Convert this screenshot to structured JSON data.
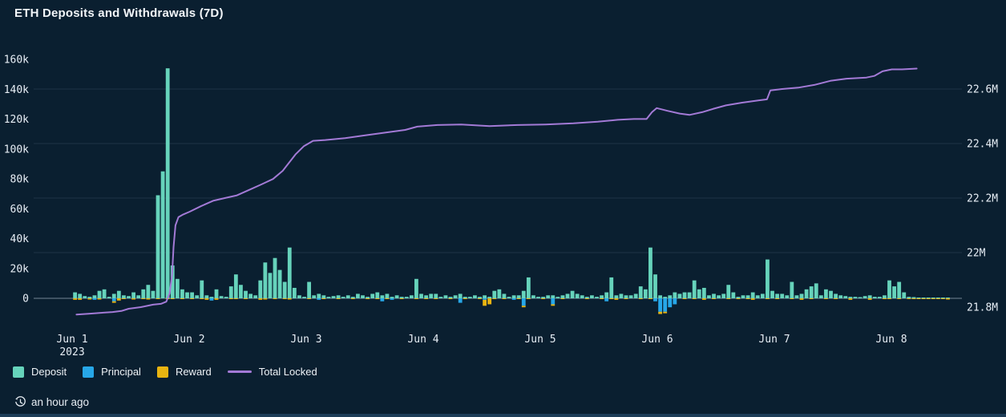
{
  "panel": {
    "title": "ETH Deposits and Withdrawals (7D)",
    "updated": "an hour ago"
  },
  "colors": {
    "background": "#0a1f30",
    "deposit": "#66d3bb",
    "principal": "#27a7e8",
    "reward": "#e9b411",
    "total_locked": "#a37ad6",
    "axis_text": "#e7eef5",
    "zero_line": "#aebcc9",
    "grid_line": "rgba(170,200,230,0.12)",
    "bottom_edge": "#1d3d58"
  },
  "legend": [
    {
      "id": "deposit",
      "label": "Deposit",
      "color": "#66d3bb",
      "swatch": "square"
    },
    {
      "id": "principal",
      "label": "Principal",
      "color": "#27a7e8",
      "swatch": "square"
    },
    {
      "id": "reward",
      "label": "Reward",
      "color": "#e9b411",
      "swatch": "square"
    },
    {
      "id": "total-locked",
      "label": "Total Locked",
      "color": "#a37ad6",
      "swatch": "line"
    }
  ],
  "chart_data": {
    "type": "bar+line",
    "title": "ETH Deposits and Withdrawals (7D)",
    "x_unit": "hours since Jun 1 2023 00:00, one bar per hour",
    "x_ticks": [
      {
        "label": "Jun 1",
        "sub": "2023"
      },
      {
        "label": "Jun 2"
      },
      {
        "label": "Jun 3"
      },
      {
        "label": "Jun 4"
      },
      {
        "label": "Jun 5"
      },
      {
        "label": "Jun 6"
      },
      {
        "label": "Jun 7"
      },
      {
        "label": "Jun 8"
      }
    ],
    "left_axis": {
      "unit": "ETH (thousands)",
      "tick_labels": [
        "160k",
        "140k",
        "120k",
        "100k",
        "80k",
        "60k",
        "40k",
        "20k",
        "0"
      ],
      "tick_values_k": [
        160,
        140,
        120,
        100,
        80,
        60,
        40,
        20,
        0
      ],
      "lim_k": [
        0,
        165
      ]
    },
    "right_axis": {
      "unit": "ETH total locked (millions)",
      "tick_labels": [
        "21.8M",
        "22M",
        "22.2M",
        "22.4M",
        "22.6M"
      ],
      "tick_values_M": [
        21.8,
        22.0,
        22.2,
        22.4,
        22.6
      ],
      "lim_M": [
        21.74,
        22.72
      ]
    },
    "grid": "faint horizontal lines at right-axis ticks, solid light zero line",
    "legend_position": "bottom-left",
    "series": [
      {
        "name": "Deposit",
        "type": "bar",
        "direction": "up",
        "color": "#66d3bb",
        "values_k": [
          4,
          3,
          1.5,
          1,
          2,
          5,
          6,
          1,
          3,
          5,
          2,
          1.5,
          4,
          2,
          6,
          9,
          5,
          69,
          85,
          154,
          22,
          13,
          6,
          4,
          4,
          2,
          12,
          2,
          1,
          6,
          1.5,
          1,
          8,
          16,
          9,
          5,
          3,
          2,
          12,
          24,
          17,
          27,
          19,
          11,
          34,
          7,
          2,
          1,
          11,
          2,
          3,
          2,
          1,
          1.5,
          2,
          1,
          2,
          1,
          3,
          2,
          1,
          3,
          4,
          2,
          3,
          1,
          2,
          1,
          1,
          2,
          13,
          3,
          2,
          3,
          3,
          1,
          2,
          1,
          2,
          3,
          1,
          1,
          2,
          1,
          2,
          1,
          5,
          6,
          3,
          1,
          2,
          2,
          5,
          14,
          2,
          1,
          1,
          2,
          2,
          1,
          2,
          3,
          5,
          3,
          2,
          1,
          2,
          1,
          2,
          4,
          14,
          2,
          3,
          2,
          2,
          3,
          8,
          6,
          34,
          16,
          2,
          1,
          2,
          4,
          3,
          4,
          4,
          12,
          6,
          7,
          2,
          3,
          2,
          3,
          9,
          4,
          1,
          2,
          2,
          4,
          2,
          3,
          26,
          5,
          3,
          3,
          2,
          11,
          2,
          3,
          6,
          8,
          10,
          2,
          6,
          5,
          3,
          2,
          1.5,
          1,
          1,
          0.8,
          1.5,
          2,
          1,
          1,
          2,
          12,
          8,
          11,
          4,
          1,
          0.8,
          0.5,
          0.5,
          0.3,
          0.5,
          0.3,
          0.5,
          0.3
        ]
      },
      {
        "name": "Principal",
        "type": "bar",
        "direction": "down",
        "color": "#27a7e8",
        "values_k": [
          0,
          0,
          0,
          0,
          -1,
          0,
          0,
          0,
          -2,
          0,
          0,
          0,
          0,
          0,
          0,
          0,
          0,
          0,
          0,
          0,
          0,
          0,
          0,
          0,
          0,
          0,
          0,
          0,
          -1.5,
          0,
          0,
          0,
          0,
          0,
          0,
          0,
          0,
          0,
          0,
          0,
          0,
          0,
          0,
          0,
          0,
          0,
          0,
          0,
          0,
          0,
          -1,
          0,
          0,
          0,
          0,
          0,
          0,
          0,
          0,
          0,
          0,
          0,
          0,
          -2,
          0,
          -1,
          0,
          0,
          0,
          0,
          0,
          0,
          0,
          0,
          0,
          0,
          0,
          0,
          0,
          -3,
          0,
          0,
          0,
          0,
          -1,
          0,
          0,
          0,
          0,
          0,
          -1,
          0,
          -5,
          0,
          0,
          0,
          0,
          0,
          -4,
          0,
          0,
          0,
          0,
          0,
          0,
          0,
          0,
          0,
          0,
          -2,
          0,
          0,
          0,
          0,
          0,
          0,
          0,
          0,
          0,
          -2,
          -9,
          -9,
          -6,
          -4,
          0,
          0,
          0,
          0,
          0,
          0,
          0,
          0,
          0,
          0,
          0,
          0,
          0,
          0,
          0,
          0,
          0,
          0,
          0,
          0,
          0,
          0,
          0,
          0,
          0,
          0,
          0,
          0,
          0,
          0,
          0,
          0,
          0,
          0,
          0,
          0,
          0,
          0,
          0,
          0,
          0,
          0,
          0,
          0,
          0,
          0,
          0,
          0,
          0,
          0,
          0,
          0,
          0,
          0,
          0,
          0
        ]
      },
      {
        "name": "Reward",
        "type": "bar",
        "direction": "down",
        "color": "#e9b411",
        "values_k": [
          -1,
          -1,
          0,
          -0.8,
          0,
          -0.8,
          0,
          0,
          -1,
          -1.5,
          -0.5,
          0,
          -0.8,
          0,
          -0.5,
          -0.8,
          0,
          -0.5,
          0,
          -0.5,
          -0.5,
          0,
          -0.5,
          0,
          -0.5,
          0,
          -0.5,
          -1,
          0,
          -1,
          0,
          0,
          -0.5,
          -0.5,
          0,
          -0.5,
          0,
          0,
          -1,
          -0.8,
          0,
          -0.5,
          0,
          -0.5,
          -0.8,
          0,
          0,
          0,
          -0.5,
          0,
          0,
          -0.5,
          0,
          0,
          -0.5,
          0,
          0,
          -0.5,
          0,
          0,
          -0.5,
          0,
          -0.5,
          0,
          -0.5,
          0,
          0,
          -0.5,
          0,
          0,
          -0.5,
          0,
          -0.5,
          0,
          -0.5,
          0,
          0,
          -0.5,
          0,
          0,
          -0.5,
          0,
          0,
          -0.5,
          -4,
          -4,
          -0.5,
          0,
          -0.5,
          0,
          0,
          -0.5,
          -1,
          -0.5,
          0,
          0,
          -0.5,
          0,
          -1,
          0,
          -0.5,
          0,
          0,
          0,
          0,
          -0.5,
          0,
          0,
          -0.5,
          0,
          -0.5,
          -1,
          0,
          -0.5,
          0,
          0,
          -0.5,
          0,
          -0.5,
          0,
          -1.5,
          -1,
          0,
          0,
          0,
          -0.5,
          0,
          -0.5,
          0,
          -1,
          0,
          -0.5,
          0,
          0,
          -0.5,
          0,
          -0.5,
          0,
          -0.5,
          -1,
          0,
          0,
          -0.5,
          0,
          -0.5,
          0,
          0,
          -0.5,
          0,
          -1,
          0,
          -0.5,
          0,
          0,
          -0.5,
          0,
          -0.5,
          0,
          0,
          -1,
          0,
          0,
          0,
          -1,
          0,
          0,
          -0.5,
          -0.5,
          0,
          -0.5,
          0,
          -0.5,
          -0.3,
          -0.3,
          -0.5,
          -0.3,
          -0.3,
          -0.5,
          -0.3,
          -0.8
        ]
      },
      {
        "name": "Total Locked",
        "type": "line",
        "axis": "right",
        "color": "#a37ad6",
        "points_hour_valueM": [
          [
            0.3,
            21.773
          ],
          [
            2.8,
            21.776
          ],
          [
            5.3,
            21.779
          ],
          [
            7.7,
            21.782
          ],
          [
            9.5,
            21.786
          ],
          [
            11,
            21.794
          ],
          [
            13.5,
            21.8
          ],
          [
            16,
            21.809
          ],
          [
            17.6,
            21.812
          ],
          [
            18.7,
            21.82
          ],
          [
            19.4,
            21.85
          ],
          [
            19.9,
            21.92
          ],
          [
            20.2,
            22.02
          ],
          [
            20.6,
            22.1
          ],
          [
            21.2,
            22.13
          ],
          [
            22.2,
            22.14
          ],
          [
            23.5,
            22.15
          ],
          [
            25.8,
            22.17
          ],
          [
            28.3,
            22.19
          ],
          [
            30.7,
            22.2
          ],
          [
            33.2,
            22.21
          ],
          [
            35.7,
            22.23
          ],
          [
            38.2,
            22.25
          ],
          [
            40.6,
            22.27
          ],
          [
            42.6,
            22.3
          ],
          [
            43.9,
            22.33
          ],
          [
            45.2,
            22.36
          ],
          [
            46.9,
            22.39
          ],
          [
            48.8,
            22.41
          ],
          [
            51.3,
            22.413
          ],
          [
            55.4,
            22.42
          ],
          [
            59.5,
            22.43
          ],
          [
            63.6,
            22.44
          ],
          [
            67.7,
            22.45
          ],
          [
            70.2,
            22.462
          ],
          [
            74.3,
            22.468
          ],
          [
            79.2,
            22.47
          ],
          [
            85,
            22.464
          ],
          [
            90.7,
            22.468
          ],
          [
            96.5,
            22.47
          ],
          [
            102.2,
            22.474
          ],
          [
            107.2,
            22.48
          ],
          [
            111.3,
            22.487
          ],
          [
            114.6,
            22.49
          ],
          [
            117.2,
            22.49
          ],
          [
            118.3,
            22.515
          ],
          [
            119.3,
            22.53
          ],
          [
            121.5,
            22.52
          ],
          [
            124,
            22.51
          ],
          [
            126,
            22.505
          ],
          [
            128.6,
            22.515
          ],
          [
            131,
            22.528
          ],
          [
            133.5,
            22.54
          ],
          [
            136.8,
            22.55
          ],
          [
            140.1,
            22.558
          ],
          [
            141.9,
            22.562
          ],
          [
            142.6,
            22.595
          ],
          [
            145,
            22.6
          ],
          [
            148.3,
            22.605
          ],
          [
            151.6,
            22.615
          ],
          [
            154.9,
            22.63
          ],
          [
            158.2,
            22.638
          ],
          [
            162.3,
            22.642
          ],
          [
            163.9,
            22.648
          ],
          [
            165.6,
            22.665
          ],
          [
            167.5,
            22.672
          ],
          [
            169.6,
            22.672
          ],
          [
            172.6,
            22.675
          ]
        ]
      }
    ]
  }
}
